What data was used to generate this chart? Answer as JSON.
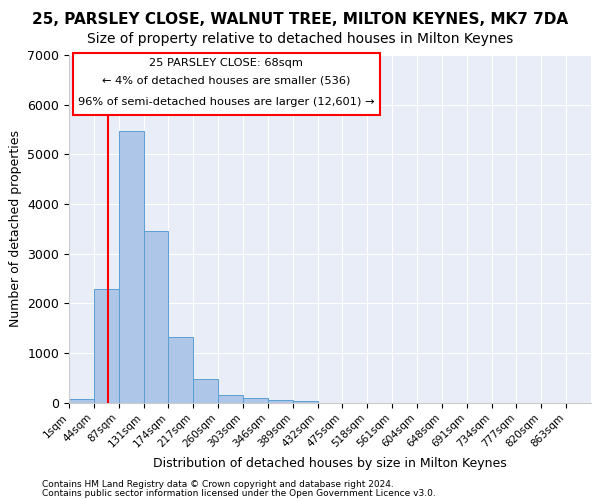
{
  "title_line1": "25, PARSLEY CLOSE, WALNUT TREE, MILTON KEYNES, MK7 7DA",
  "title_line2": "Size of property relative to detached houses in Milton Keynes",
  "xlabel": "Distribution of detached houses by size in Milton Keynes",
  "ylabel": "Number of detached properties",
  "footer_line1": "Contains HM Land Registry data © Crown copyright and database right 2024.",
  "footer_line2": "Contains public sector information licensed under the Open Government Licence v3.0.",
  "bin_labels": [
    "1sqm",
    "44sqm",
    "87sqm",
    "131sqm",
    "174sqm",
    "217sqm",
    "260sqm",
    "303sqm",
    "346sqm",
    "389sqm",
    "432sqm",
    "475sqm",
    "518sqm",
    "561sqm",
    "604sqm",
    "648sqm",
    "691sqm",
    "734sqm",
    "777sqm",
    "820sqm",
    "863sqm"
  ],
  "bar_values": [
    80,
    2280,
    5470,
    3450,
    1320,
    470,
    155,
    90,
    55,
    30,
    0,
    0,
    0,
    0,
    0,
    0,
    0,
    0,
    0,
    0,
    0
  ],
  "bar_color": "#aec6e8",
  "bar_edge_color": "#5a9fd4",
  "annotation_text_line1": "25 PARSLEY CLOSE: 68sqm",
  "annotation_text_line2": "← 4% of detached houses are smaller (536)",
  "annotation_text_line3": "96% of semi-detached houses are larger (12,601) →",
  "ylim": [
    0,
    7000
  ],
  "background_color": "#e8edf8",
  "grid_color": "#ffffff",
  "title1_fontsize": 11,
  "title2_fontsize": 10
}
